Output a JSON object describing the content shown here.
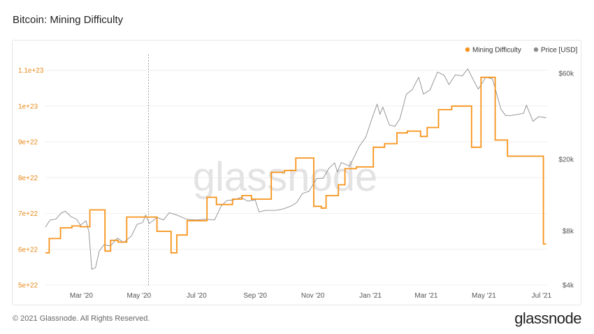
{
  "header": {
    "title": "Bitcoin: Mining Difficulty"
  },
  "footer": {
    "copyright": "© 2021 Glassnode. All Rights Reserved.",
    "brand": "glassnode"
  },
  "watermark": "glassnode",
  "colors": {
    "difficulty": "#f7931a",
    "price": "#8c8c8c",
    "left_ticks": "#e8891c"
  },
  "chart_data": {
    "type": "line",
    "title": "Bitcoin: Mining Difficulty",
    "legend": {
      "placement": "top-right",
      "entries": [
        "Mining Difficulty",
        "Price [USD]"
      ]
    },
    "grid": {
      "horizontal": true,
      "vertical": false
    },
    "x_range": [
      "2020-01-23",
      "2021-07-07"
    ],
    "x_ticks": [
      {
        "date": "2020-03-01",
        "label": "Mar '20"
      },
      {
        "date": "2020-05-01",
        "label": "May '20"
      },
      {
        "date": "2020-07-01",
        "label": "Jul '20"
      },
      {
        "date": "2020-09-01",
        "label": "Sep '20"
      },
      {
        "date": "2020-11-01",
        "label": "Nov '20"
      },
      {
        "date": "2021-01-01",
        "label": "Jan '21"
      },
      {
        "date": "2021-03-01",
        "label": "Mar '21"
      },
      {
        "date": "2021-05-01",
        "label": "May '21"
      },
      {
        "date": "2021-07-01",
        "label": "Jul '21"
      }
    ],
    "marker_line": {
      "date": "2020-05-11"
    },
    "y_left": {
      "range": [
        5e+22,
        1.14e+23
      ],
      "ticks": [
        {
          "value": 5e+22,
          "label": "5e+22"
        },
        {
          "value": 6e+22,
          "label": "6e+22"
        },
        {
          "value": 7e+22,
          "label": "7e+22"
        },
        {
          "value": 8e+22,
          "label": "8e+22"
        },
        {
          "value": 9e+22,
          "label": "9e+22"
        },
        {
          "value": 1e+23,
          "label": "1e+23"
        },
        {
          "value": 1.1e+23,
          "label": "1.1e+23"
        }
      ]
    },
    "y_right": {
      "scale": "log",
      "range": [
        4000,
        75000
      ],
      "ticks": [
        {
          "value": 4000,
          "label": "$4k"
        },
        {
          "value": 8000,
          "label": "$8k"
        },
        {
          "value": 20000,
          "label": "$20k"
        },
        {
          "value": 60000,
          "label": "$60k"
        }
      ]
    },
    "series": [
      {
        "name": "Mining Difficulty",
        "axis": "left",
        "step": true,
        "points": [
          [
            "2020-01-23",
            5.9e+22
          ],
          [
            "2020-01-27",
            6.3e+22
          ],
          [
            "2020-02-04",
            6.3e+22
          ],
          [
            "2020-02-08",
            6.6e+22
          ],
          [
            "2020-02-20",
            6.65e+22
          ],
          [
            "2020-02-29",
            6.63e+22
          ],
          [
            "2020-03-08",
            6.63e+22
          ],
          [
            "2020-03-10",
            7.1e+22
          ],
          [
            "2020-03-25",
            7.1e+22
          ],
          [
            "2020-03-26",
            5.95e+22
          ],
          [
            "2020-04-01",
            6.25e+22
          ],
          [
            "2020-04-09",
            6.2e+22
          ],
          [
            "2020-04-18",
            6.9e+22
          ],
          [
            "2020-05-11",
            6.9e+22
          ],
          [
            "2020-05-20",
            6.5e+22
          ],
          [
            "2020-06-04",
            5.9e+22
          ],
          [
            "2020-06-10",
            6.4e+22
          ],
          [
            "2020-06-21",
            6.8e+22
          ],
          [
            "2020-07-08",
            6.8e+22
          ],
          [
            "2020-07-12",
            7.45e+22
          ],
          [
            "2020-07-22",
            7.25e+22
          ],
          [
            "2020-08-08",
            7.4e+22
          ],
          [
            "2020-08-18",
            7.5e+22
          ],
          [
            "2020-08-28",
            7.4e+22
          ],
          [
            "2020-09-12",
            7.4e+22
          ],
          [
            "2020-09-18",
            8.15e+22
          ],
          [
            "2020-10-02",
            8.2e+22
          ],
          [
            "2020-10-14",
            8.55e+22
          ],
          [
            "2020-10-27",
            8.55e+22
          ],
          [
            "2020-11-02",
            7.2e+22
          ],
          [
            "2020-11-10",
            7.15e+22
          ],
          [
            "2020-11-15",
            7.5e+22
          ],
          [
            "2020-11-28",
            7.8e+22
          ],
          [
            "2020-12-05",
            8.25e+22
          ],
          [
            "2020-12-17",
            8.3e+22
          ],
          [
            "2020-12-30",
            8.3e+22
          ],
          [
            "2021-01-04",
            8.85e+22
          ],
          [
            "2021-01-16",
            8.95e+22
          ],
          [
            "2021-01-29",
            9.25e+22
          ],
          [
            "2021-02-09",
            9.3e+22
          ],
          [
            "2021-02-23",
            9.15e+22
          ],
          [
            "2021-03-02",
            9.4e+22
          ],
          [
            "2021-03-14",
            9.9e+22
          ],
          [
            "2021-03-28",
            1e+23
          ],
          [
            "2021-04-10",
            1e+23
          ],
          [
            "2021-04-18",
            8.85e+22
          ],
          [
            "2021-04-28",
            1.08e+23
          ],
          [
            "2021-05-10",
            1.08e+23
          ],
          [
            "2021-05-13",
            9.05e+22
          ],
          [
            "2021-05-26",
            8.6e+22
          ],
          [
            "2021-06-20",
            8.6e+22
          ],
          [
            "2021-07-03",
            6.15e+22
          ],
          [
            "2021-07-06",
            6.15e+22
          ]
        ]
      },
      {
        "name": "Price [USD]",
        "axis": "right",
        "step": false,
        "points": [
          [
            "2020-01-23",
            8400
          ],
          [
            "2020-01-28",
            9200
          ],
          [
            "2020-02-03",
            9300
          ],
          [
            "2020-02-09",
            10100
          ],
          [
            "2020-02-13",
            10300
          ],
          [
            "2020-02-19",
            9600
          ],
          [
            "2020-02-25",
            9300
          ],
          [
            "2020-02-29",
            8600
          ],
          [
            "2020-03-06",
            9100
          ],
          [
            "2020-03-09",
            7900
          ],
          [
            "2020-03-12",
            4900
          ],
          [
            "2020-03-16",
            5000
          ],
          [
            "2020-03-20",
            6200
          ],
          [
            "2020-03-25",
            6700
          ],
          [
            "2020-04-01",
            6600
          ],
          [
            "2020-04-08",
            7300
          ],
          [
            "2020-04-15",
            6900
          ],
          [
            "2020-04-23",
            7500
          ],
          [
            "2020-04-29",
            8700
          ],
          [
            "2020-05-05",
            8900
          ],
          [
            "2020-05-08",
            9800
          ],
          [
            "2020-05-12",
            8800
          ],
          [
            "2020-05-20",
            9500
          ],
          [
            "2020-05-27",
            9200
          ],
          [
            "2020-06-02",
            10100
          ],
          [
            "2020-06-10",
            9800
          ],
          [
            "2020-06-20",
            9300
          ],
          [
            "2020-07-01",
            9200
          ],
          [
            "2020-07-10",
            9300
          ],
          [
            "2020-07-20",
            9200
          ],
          [
            "2020-07-27",
            11000
          ],
          [
            "2020-08-02",
            11800
          ],
          [
            "2020-08-10",
            11900
          ],
          [
            "2020-08-17",
            12300
          ],
          [
            "2020-08-24",
            11700
          ],
          [
            "2020-09-01",
            11900
          ],
          [
            "2020-09-05",
            10200
          ],
          [
            "2020-09-12",
            10400
          ],
          [
            "2020-09-23",
            10400
          ],
          [
            "2020-10-01",
            10600
          ],
          [
            "2020-10-09",
            11000
          ],
          [
            "2020-10-15",
            11500
          ],
          [
            "2020-10-21",
            12900
          ],
          [
            "2020-10-28",
            13300
          ],
          [
            "2020-11-05",
            15600
          ],
          [
            "2020-11-12",
            15700
          ],
          [
            "2020-11-18",
            17800
          ],
          [
            "2020-11-24",
            19100
          ],
          [
            "2020-11-27",
            17000
          ],
          [
            "2020-12-01",
            19200
          ],
          [
            "2020-12-10",
            18300
          ],
          [
            "2020-12-16",
            21300
          ],
          [
            "2020-12-20",
            23500
          ],
          [
            "2020-12-27",
            26500
          ],
          [
            "2021-01-02",
            33000
          ],
          [
            "2021-01-08",
            40500
          ],
          [
            "2021-01-11",
            35500
          ],
          [
            "2021-01-14",
            39000
          ],
          [
            "2021-01-21",
            31000
          ],
          [
            "2021-01-27",
            30500
          ],
          [
            "2021-02-01",
            33500
          ],
          [
            "2021-02-08",
            46000
          ],
          [
            "2021-02-14",
            48500
          ],
          [
            "2021-02-21",
            57000
          ],
          [
            "2021-02-26",
            46000
          ],
          [
            "2021-03-05",
            48500
          ],
          [
            "2021-03-13",
            61000
          ],
          [
            "2021-03-20",
            58500
          ],
          [
            "2021-03-25",
            52000
          ],
          [
            "2021-04-01",
            59000
          ],
          [
            "2021-04-08",
            58000
          ],
          [
            "2021-04-14",
            63500
          ],
          [
            "2021-04-20",
            55000
          ],
          [
            "2021-04-25",
            49000
          ],
          [
            "2021-05-03",
            57000
          ],
          [
            "2021-05-10",
            56000
          ],
          [
            "2021-05-13",
            49500
          ],
          [
            "2021-05-19",
            38000
          ],
          [
            "2021-05-24",
            35000
          ],
          [
            "2021-05-30",
            35000
          ],
          [
            "2021-06-06",
            35500
          ],
          [
            "2021-06-12",
            36000
          ],
          [
            "2021-06-15",
            40000
          ],
          [
            "2021-06-22",
            32500
          ],
          [
            "2021-06-28",
            34500
          ],
          [
            "2021-07-06",
            34000
          ]
        ]
      }
    ]
  }
}
